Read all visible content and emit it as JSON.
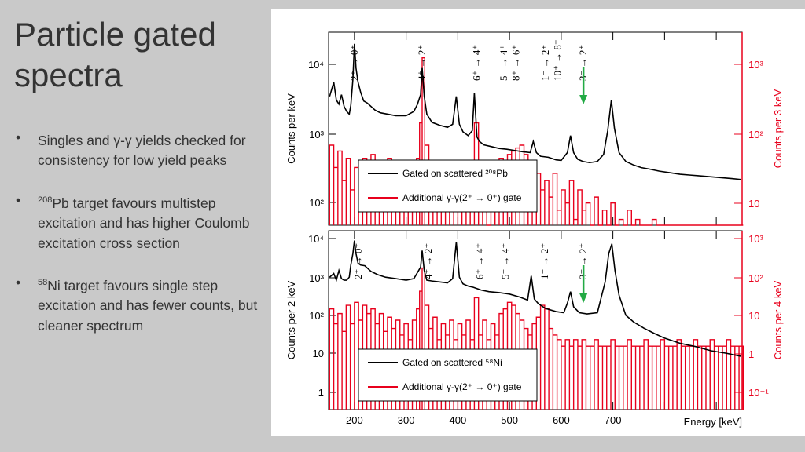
{
  "slide": {
    "title_line1": "Particle gated",
    "title_line2": "spectra",
    "bullets": [
      {
        "sup": "",
        "text": "Singles and γ-γ yields checked for consistency for low yield peaks"
      },
      {
        "sup": "208",
        "text": "Pb target favours multistep excitation and has higher Coulomb excitation cross section"
      },
      {
        "sup": "58",
        "text": "Ni target favours single step excitation and has fewer counts, but cleaner spectrum"
      }
    ]
  },
  "colors": {
    "black_series": "#000000",
    "red_series": "#e8001c",
    "arrow": "#22aa44"
  },
  "chart_data": [
    {
      "type": "line",
      "panel": "top",
      "xlim": [
        150,
        950
      ],
      "ylabel_left": "Counts per keV",
      "ylabel_right": "Counts per 3 keV",
      "yticks_left": [
        "10²",
        "10³",
        "10⁴"
      ],
      "yticks_right": [
        "10",
        "10²",
        "10³"
      ],
      "legend": [
        "Gated on scattered ²⁰⁸Pb",
        "Additional γ-γ(2⁺ → 0⁺) gate"
      ],
      "annotations": [
        {
          "x": 200,
          "text": "2⁺ → 0⁺"
        },
        {
          "x": 331,
          "text": "4⁺ → 2⁺"
        },
        {
          "x": 437,
          "text": "6⁺ → 4⁺"
        },
        {
          "x": 489,
          "text": "5⁻ → 4⁺"
        },
        {
          "x": 513,
          "text": "8⁺ → 6⁺"
        },
        {
          "x": 570,
          "text": "1⁻ → 2⁺"
        },
        {
          "x": 593,
          "text": "10⁺ → 8⁺"
        },
        {
          "x": 643,
          "text": "3⁻ → 2⁺"
        }
      ],
      "series": [
        {
          "name": "Gated on scattered ²⁰⁸Pb",
          "color": "#000000",
          "x": [
            152,
            160,
            165,
            170,
            175,
            180,
            185,
            190,
            193,
            197,
            200,
            203,
            207,
            212,
            218,
            225,
            232,
            240,
            250,
            265,
            280,
            300,
            315,
            322,
            328,
            331,
            335,
            340,
            350,
            365,
            380,
            390,
            397,
            403,
            410,
            420,
            428,
            432,
            437,
            442,
            450,
            465,
            480,
            495,
            510,
            525,
            540,
            546,
            552,
            560,
            575,
            590,
            600,
            612,
            618,
            624,
            632,
            642,
            655,
            670,
            682,
            690,
            697,
            703,
            712,
            725,
            740,
            755,
            770,
            790,
            810,
            830,
            850,
            870,
            890,
            910,
            930,
            948
          ],
          "y": [
            4000,
            6000,
            3600,
            3200,
            4200,
            3000,
            2600,
            2400,
            3100,
            6500,
            18000,
            9000,
            6000,
            4500,
            3500,
            3300,
            3000,
            2700,
            2500,
            2400,
            2300,
            2300,
            2600,
            3200,
            4200,
            9000,
            4000,
            2400,
            1900,
            1750,
            1650,
            1800,
            4000,
            1800,
            1450,
            1300,
            1500,
            4400,
            1250,
            1100,
            1000,
            950,
            900,
            880,
            850,
            820,
            800,
            1100,
            800,
            720,
            700,
            650,
            640,
            800,
            1300,
            800,
            660,
            620,
            600,
            620,
            760,
            1500,
            3600,
            1600,
            800,
            620,
            560,
            520,
            500,
            470,
            450,
            430,
            420,
            410,
            400,
            390,
            380,
            370
          ]
        },
        {
          "name": "Additional γ-γ(2⁺ → 0⁺) gate",
          "color": "#e8001c",
          "x": [
            152,
            160,
            168,
            176,
            184,
            192,
            200,
            208,
            216,
            224,
            232,
            240,
            248,
            256,
            264,
            272,
            280,
            288,
            296,
            304,
            312,
            320,
            326,
            331,
            336,
            344,
            352,
            360,
            368,
            376,
            384,
            392,
            400,
            408,
            416,
            424,
            432,
            440,
            448,
            456,
            464,
            472,
            480,
            488,
            496,
            504,
            512,
            520,
            528,
            536,
            544,
            552,
            560,
            568,
            576,
            584,
            592,
            600,
            608,
            616,
            624,
            632,
            640,
            648,
            656,
            664,
            672,
            680,
            688,
            696,
            704,
            712,
            720,
            728,
            736,
            744,
            752,
            760,
            768,
            776,
            784,
            792,
            800,
            808,
            816,
            824,
            832,
            840,
            848,
            856,
            864,
            872,
            880,
            888,
            896,
            904,
            912,
            920,
            928,
            936,
            944
          ],
          "y": [
            60,
            30,
            50,
            20,
            40,
            15,
            30,
            12,
            40,
            25,
            45,
            20,
            35,
            15,
            40,
            20,
            30,
            15,
            25,
            12,
            30,
            40,
            120,
            900,
            60,
            15,
            25,
            8,
            20,
            12,
            30,
            8,
            25,
            10,
            30,
            8,
            120,
            10,
            25,
            5,
            20,
            8,
            40,
            30,
            45,
            50,
            55,
            60,
            45,
            30,
            20,
            25,
            15,
            20,
            12,
            25,
            8,
            15,
            10,
            20,
            6,
            15,
            8,
            10,
            5,
            12,
            5,
            8,
            4,
            10,
            5,
            6,
            4,
            8,
            3,
            6,
            4,
            5,
            3,
            6,
            3,
            5,
            3,
            4,
            3,
            5,
            3,
            4,
            3,
            4,
            3,
            5,
            3,
            4,
            3,
            4,
            3,
            4,
            3,
            4,
            3
          ]
        }
      ]
    },
    {
      "type": "line",
      "panel": "bottom",
      "xlim": [
        150,
        950
      ],
      "xlabel": "Energy [keV]",
      "xticks": [
        "200",
        "300",
        "400",
        "500",
        "600",
        "700"
      ],
      "ylabel_left": "Counts per 2 keV",
      "ylabel_right": "Counts per 4 keV",
      "yticks_left": [
        "1",
        "10",
        "10²",
        "10³",
        "10⁴"
      ],
      "yticks_right": [
        "10⁻¹",
        "1",
        "10",
        "10²",
        "10³"
      ],
      "legend": [
        "Gated on scattered ⁵⁸Ni",
        "Additional γ-γ(2⁺ → 0⁺) gate"
      ],
      "annotations": [
        {
          "x": 208,
          "text": "2⁺ → 0⁺"
        },
        {
          "x": 343,
          "text": "4⁺ → 2⁺"
        },
        {
          "x": 443,
          "text": "6⁺ → 4⁺"
        },
        {
          "x": 492,
          "text": "5⁻ → 4⁺"
        },
        {
          "x": 568,
          "text": "1⁻ → 2⁺"
        },
        {
          "x": 643,
          "text": "3⁻ → 2⁺"
        }
      ],
      "series": [
        {
          "name": "Gated on scattered ⁵⁸Ni",
          "color": "#000000",
          "x": [
            152,
            160,
            165,
            170,
            175,
            180,
            185,
            190,
            193,
            197,
            200,
            203,
            207,
            212,
            220,
            232,
            245,
            260,
            280,
            300,
            315,
            322,
            328,
            331,
            335,
            340,
            350,
            365,
            380,
            390,
            397,
            403,
            410,
            420,
            430,
            445,
            460,
            480,
            500,
            520,
            535,
            542,
            548,
            556,
            570,
            590,
            605,
            612,
            618,
            624,
            635,
            650,
            670,
            685,
            692,
            698,
            704,
            712,
            725,
            740,
            760,
            780,
            800,
            830,
            860,
            890,
            920,
            948
          ],
          "y": [
            1200,
            1500,
            1000,
            1800,
            1100,
            1000,
            1000,
            1200,
            2500,
            5000,
            11000,
            5000,
            2800,
            2500,
            2400,
            1700,
            1400,
            1200,
            1100,
            1000,
            1100,
            1600,
            2200,
            6000,
            1800,
            1000,
            950,
            900,
            850,
            1100,
            10000,
            1200,
            800,
            700,
            650,
            550,
            500,
            470,
            430,
            360,
            300,
            1300,
            320,
            240,
            180,
            150,
            140,
            250,
            500,
            200,
            140,
            130,
            140,
            900,
            5000,
            9000,
            1800,
            400,
            120,
            80,
            55,
            40,
            30,
            22,
            18,
            14,
            12,
            10
          ]
        },
        {
          "name": "Additional γ-γ(2⁺ → 0⁺) gate",
          "color": "#e8001c",
          "x": [
            152,
            160,
            168,
            176,
            184,
            192,
            200,
            208,
            216,
            224,
            232,
            240,
            248,
            256,
            264,
            272,
            280,
            288,
            296,
            304,
            312,
            320,
            326,
            331,
            336,
            344,
            352,
            360,
            368,
            376,
            384,
            392,
            400,
            408,
            416,
            424,
            432,
            440,
            448,
            456,
            464,
            472,
            480,
            488,
            496,
            504,
            512,
            520,
            528,
            536,
            544,
            552,
            560,
            568,
            576,
            584,
            592,
            600,
            608,
            616,
            624,
            632,
            640,
            648,
            656,
            664,
            672,
            680,
            688,
            696,
            704,
            712,
            720,
            728,
            736,
            744,
            752,
            760,
            768,
            776,
            784,
            792,
            800,
            808,
            816,
            824,
            832,
            840,
            848,
            856,
            864,
            872,
            880,
            888,
            896,
            904,
            912,
            920,
            928,
            936,
            944
          ],
          "y": [
            20,
            8,
            15,
            5,
            25,
            8,
            30,
            10,
            25,
            15,
            20,
            8,
            15,
            5,
            12,
            6,
            10,
            4,
            8,
            3,
            10,
            20,
            60,
            250,
            25,
            6,
            12,
            3,
            8,
            4,
            10,
            3,
            8,
            4,
            10,
            3,
            40,
            4,
            10,
            3,
            8,
            4,
            15,
            20,
            30,
            25,
            15,
            10,
            6,
            4,
            8,
            12,
            25,
            20,
            6,
            4,
            3,
            2,
            3,
            2,
            3,
            2,
            3,
            2,
            2,
            3,
            2,
            2,
            2,
            3,
            2,
            2,
            2,
            3,
            2,
            2,
            2,
            3,
            2,
            2,
            2,
            3,
            2,
            2,
            2,
            3,
            2,
            2,
            2,
            3,
            2,
            2,
            2,
            3,
            2,
            2,
            2,
            3,
            2,
            2,
            2
          ]
        }
      ]
    }
  ]
}
